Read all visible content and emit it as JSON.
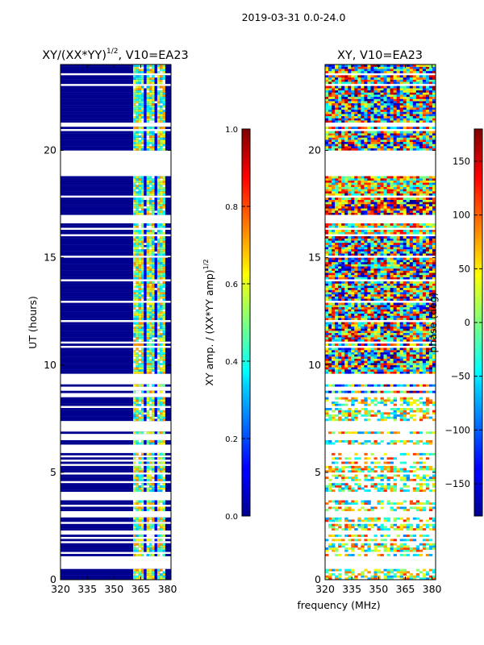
{
  "suptitle": "2019-03-31 0.0-24.0",
  "chart_data": [
    {
      "type": "heatmap",
      "title": "XY/(XX*YY)^1/2, V10=EA23",
      "title_main": "XY/(XX*YY)",
      "title_exp": "1/2",
      "title_tail": ", V10=EA23",
      "ylabel": "UT (hours)",
      "xlim": [
        320,
        382
      ],
      "ylim": [
        0,
        24
      ],
      "xticks": [
        320,
        335,
        350,
        365,
        380
      ],
      "yticks": [
        0,
        5,
        10,
        15,
        20
      ],
      "colorbar": {
        "label": "XY amp. / (XX*YY amp)^1/2",
        "label_main": "XY amp. / (XX*YY amp)",
        "label_exp": "1/2",
        "range": [
          0.0,
          1.0
        ],
        "ticks": [
          "0.0",
          "0.2",
          "0.4",
          "0.6",
          "0.8",
          "1.0"
        ],
        "tick_values": [
          0.0,
          0.2,
          0.4,
          0.6,
          0.8,
          1.0
        ]
      }
    },
    {
      "type": "heatmap",
      "title": "XY, V10=EA23",
      "xlim": [
        320,
        382
      ],
      "ylim": [
        0,
        24
      ],
      "xticks": [
        320,
        335,
        350,
        365,
        380
      ],
      "yticks": [
        0,
        5,
        10,
        15,
        20
      ],
      "colorbar": {
        "label": "phase (deg)",
        "range": [
          -180,
          180
        ],
        "ticks": [
          "150",
          "100",
          "50",
          "0",
          "−50",
          "−100",
          "−150"
        ],
        "tick_values": [
          150,
          100,
          50,
          0,
          -50,
          -100,
          -150
        ]
      }
    }
  ],
  "xlabel": "frequency (MHz)"
}
